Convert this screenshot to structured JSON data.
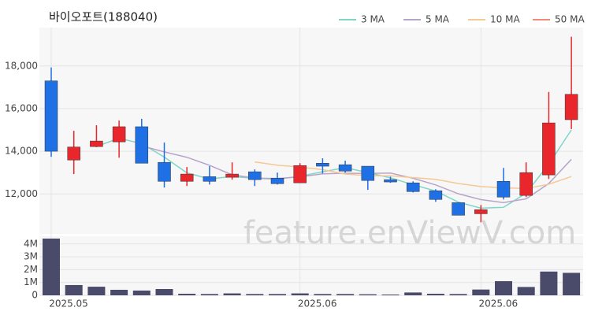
{
  "chart_data": {
    "type": "candlestick",
    "title": "바이오포트(188040)",
    "watermark": "feature.enViewV.com",
    "categories": [
      "2025.05",
      null,
      null,
      null,
      null,
      null,
      null,
      null,
      null,
      null,
      null,
      "2025.06",
      null,
      null,
      null,
      null,
      null,
      null,
      null,
      "2025.06",
      null,
      null,
      null,
      null
    ],
    "open": [
      17300,
      13590,
      14220,
      14440,
      15150,
      13480,
      12590,
      12810,
      12780,
      13040,
      12740,
      12520,
      13440,
      13370,
      13300,
      12670,
      12520,
      12150,
      11590,
      11070,
      12590,
      11930,
      12890,
      15480
    ],
    "high": [
      17930,
      14960,
      15220,
      15440,
      15520,
      14410,
      13260,
      13300,
      13480,
      13150,
      13000,
      13440,
      13670,
      13560,
      13300,
      12810,
      12590,
      12220,
      11590,
      11480,
      13220,
      13480,
      16780,
      19370
    ],
    "low": [
      13740,
      12930,
      14190,
      13700,
      13440,
      12300,
      12370,
      12440,
      12670,
      12370,
      12440,
      12520,
      12960,
      13000,
      12190,
      12520,
      12070,
      11630,
      11000,
      10670,
      11740,
      11850,
      12700,
      15040
    ],
    "close": [
      14000,
      14200,
      14480,
      15150,
      13440,
      12590,
      12930,
      12590,
      12930,
      12670,
      12480,
      13330,
      13300,
      13070,
      12630,
      12560,
      12110,
      11740,
      11000,
      11260,
      11850,
      13000,
      15330,
      16670
    ],
    "up_color": "#e8262b",
    "down_color": "#1f6fe5",
    "ylim": [
      10200,
      19800
    ],
    "yticks": [
      {
        "value": 12000,
        "label": "12,000"
      },
      {
        "value": 14000,
        "label": "14,000"
      },
      {
        "value": 16000,
        "label": "16,000"
      },
      {
        "value": 18000,
        "label": "18,000"
      }
    ],
    "series": [
      {
        "name": "3 MA",
        "color": "#7fd6c8",
        "values": [
          null,
          null,
          14227,
          14610,
          14357,
          13727,
          12987,
          12703,
          12817,
          12730,
          12693,
          12827,
          13037,
          13233,
          13000,
          12753,
          12433,
          12137,
          11617,
          11333,
          11370,
          12037,
          13393,
          15000
        ]
      },
      {
        "name": "5 MA",
        "color": "#b9a4c9",
        "values": [
          null,
          null,
          null,
          null,
          14254,
          13972,
          13718,
          13340,
          12896,
          12742,
          12720,
          12800,
          12942,
          12970,
          12962,
          12978,
          12734,
          12422,
          12008,
          11734,
          11592,
          11770,
          12488,
          13622
        ]
      },
      {
        "name": "10 MA",
        "color": "#f5c894",
        "values": [
          null,
          null,
          null,
          null,
          null,
          null,
          null,
          null,
          null,
          13498,
          13346,
          13259,
          13141,
          12933,
          12852,
          12849,
          12767,
          12682,
          12489,
          12348,
          12285,
          12252,
          12455,
          12815
        ]
      },
      {
        "name": "50 MA",
        "color": "#f08a7a",
        "values": [
          null,
          null,
          null,
          null,
          null,
          null,
          null,
          null,
          null,
          null,
          null,
          null,
          null,
          null,
          null,
          null,
          null,
          null,
          null,
          null,
          null,
          null,
          null,
          null
        ]
      }
    ],
    "volume": {
      "color": "#4a4a6a",
      "values": [
        4420000,
        800000,
        670000,
        430000,
        370000,
        490000,
        120000,
        100000,
        150000,
        100000,
        100000,
        150000,
        100000,
        100000,
        80000,
        60000,
        220000,
        120000,
        100000,
        450000,
        1100000,
        650000,
        1850000,
        1750000
      ],
      "ylim": [
        0,
        4600000
      ],
      "yticks": [
        0,
        {
          "value": 1000000,
          "label": "1M"
        },
        {
          "value": 2000000,
          "label": "2M"
        },
        {
          "value": 3000000,
          "label": "3M"
        },
        {
          "value": 4000000,
          "label": "4M"
        }
      ]
    }
  }
}
